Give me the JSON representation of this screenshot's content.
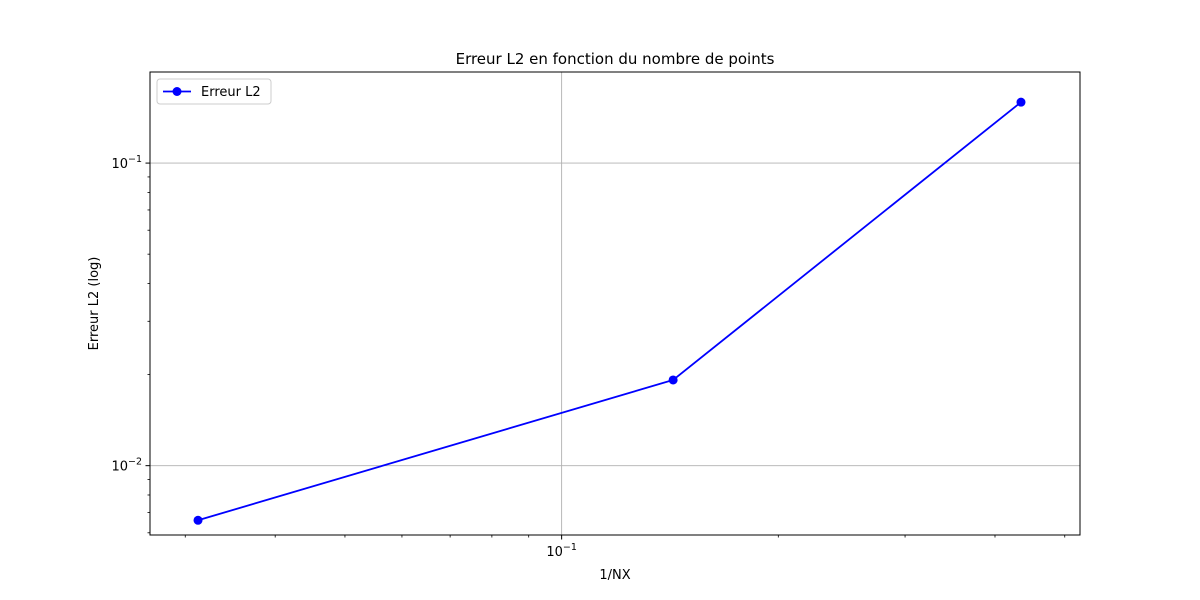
{
  "chart_data": {
    "type": "line",
    "title": "Erreur L2 en fonction du nombre de points",
    "xlabel": "1/NX",
    "ylabel": "Erreur L2 (log)",
    "xscale": "log",
    "yscale": "log",
    "xlim": [
      0.0268,
      0.525
    ],
    "ylim": [
      0.0059,
      0.2
    ],
    "grid": true,
    "legend_position": "top-left",
    "x_major_ticks": [
      {
        "value": 0.1,
        "base": "10",
        "exp": "−1"
      }
    ],
    "y_major_ticks": [
      {
        "value": 0.01,
        "base": "10",
        "exp": "−2"
      },
      {
        "value": 0.1,
        "base": "10",
        "exp": "−1"
      }
    ],
    "series": [
      {
        "name": "Erreur L2",
        "color": "#0000ff",
        "marker": "circle",
        "x": [
          0.03125,
          0.142857,
          0.4347
        ],
        "y": [
          0.0066,
          0.0192,
          0.159
        ]
      }
    ]
  }
}
